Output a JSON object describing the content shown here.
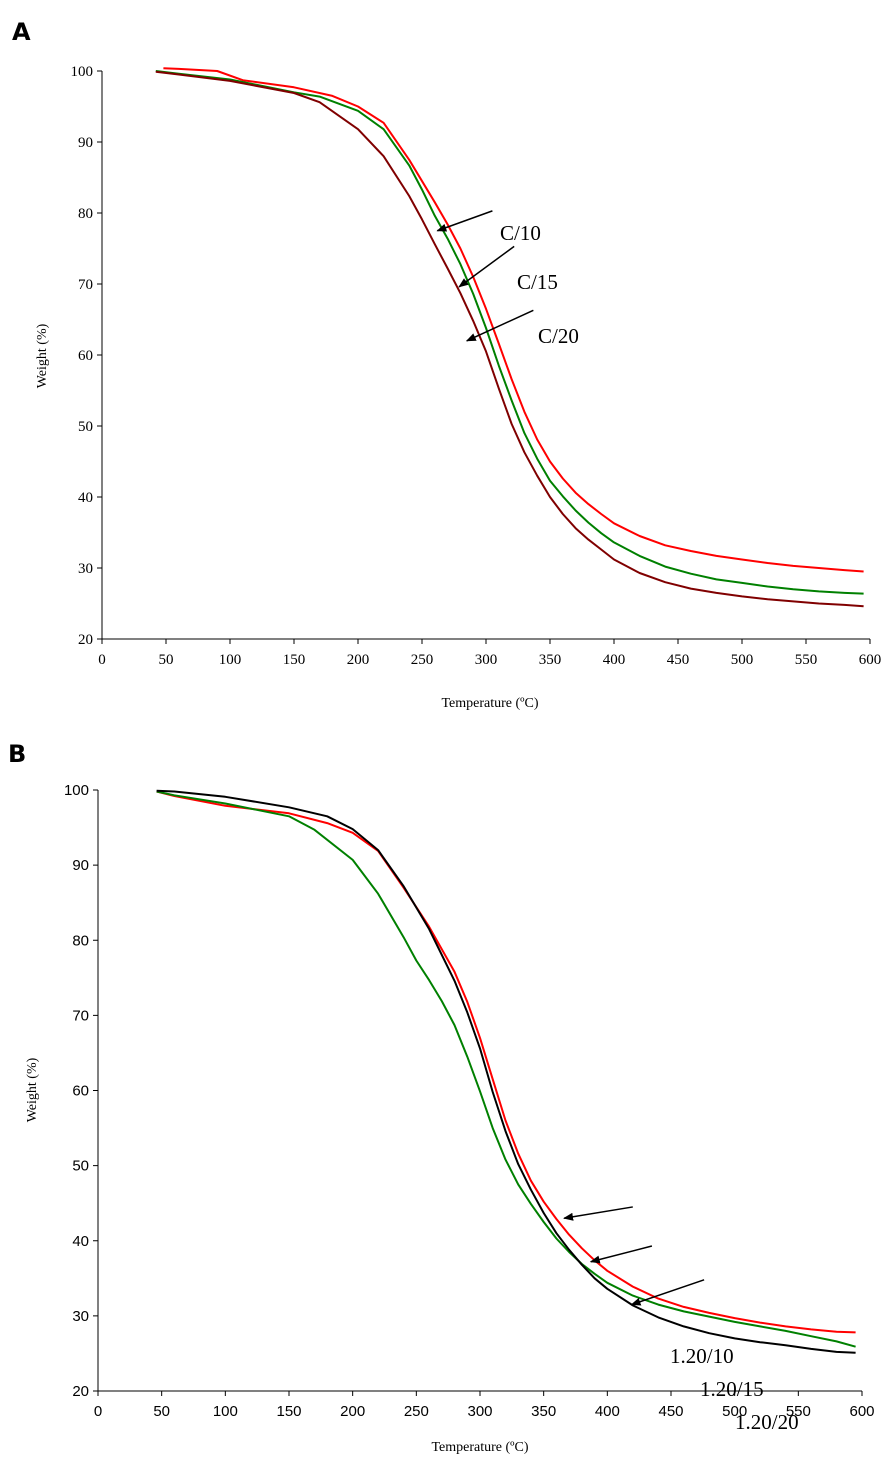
{
  "chart_data": [
    {
      "panel": "A",
      "type": "line",
      "xlabel": "Temperature (ºC)",
      "ylabel": "Weight (%)",
      "xlim": [
        0,
        600
      ],
      "ylim": [
        20,
        100
      ],
      "xticks": [
        0,
        50,
        100,
        150,
        200,
        250,
        300,
        350,
        400,
        450,
        500,
        550,
        600
      ],
      "yticks": [
        20,
        30,
        40,
        50,
        60,
        70,
        80,
        90,
        100
      ],
      "grid": false,
      "series": [
        {
          "name": "C/10",
          "color": "#ff0000",
          "x": [
            48,
            60,
            90,
            110,
            150,
            180,
            200,
            220,
            240,
            260,
            270,
            280,
            290,
            300,
            310,
            320,
            330,
            340,
            350,
            360,
            370,
            380,
            390,
            400,
            420,
            440,
            460,
            480,
            500,
            520,
            540,
            560,
            580,
            595
          ],
          "y": [
            100.4,
            100.3,
            100.0,
            98.7,
            97.7,
            96.5,
            95.0,
            92.7,
            87.5,
            81.5,
            78.4,
            75.0,
            71.0,
            66.5,
            61.6,
            56.6,
            52.0,
            48.1,
            45.0,
            42.6,
            40.6,
            39.0,
            37.6,
            36.3,
            34.5,
            33.2,
            32.4,
            31.7,
            31.2,
            30.7,
            30.3,
            30.0,
            29.7,
            29.5
          ]
        },
        {
          "name": "C/15",
          "color": "#008000",
          "x": [
            42,
            60,
            100,
            150,
            170,
            200,
            220,
            240,
            250,
            260,
            270,
            280,
            290,
            300,
            310,
            320,
            330,
            340,
            350,
            360,
            370,
            380,
            390,
            400,
            420,
            440,
            460,
            480,
            500,
            520,
            540,
            560,
            580,
            595
          ],
          "y": [
            100.0,
            99.6,
            98.8,
            97.0,
            96.4,
            94.4,
            91.8,
            86.7,
            83.3,
            79.6,
            76.4,
            72.8,
            68.6,
            63.8,
            58.5,
            53.6,
            49.0,
            45.4,
            42.3,
            40.1,
            38.1,
            36.4,
            34.9,
            33.6,
            31.7,
            30.2,
            29.2,
            28.4,
            27.9,
            27.4,
            27.0,
            26.7,
            26.5,
            26.4
          ]
        },
        {
          "name": "C/20",
          "color": "#800000",
          "x": [
            42,
            60,
            100,
            150,
            170,
            200,
            220,
            240,
            250,
            260,
            270,
            280,
            290,
            300,
            310,
            320,
            330,
            340,
            350,
            360,
            370,
            380,
            390,
            400,
            420,
            440,
            460,
            480,
            500,
            520,
            540,
            560,
            580,
            595
          ],
          "y": [
            99.9,
            99.5,
            98.6,
            96.9,
            95.6,
            91.8,
            88.0,
            82.4,
            79.1,
            75.6,
            72.2,
            68.7,
            64.8,
            60.5,
            55.3,
            50.3,
            46.3,
            43.0,
            40.0,
            37.6,
            35.6,
            34.0,
            32.6,
            31.2,
            29.3,
            28.0,
            27.1,
            26.5,
            26.0,
            25.6,
            25.3,
            25.0,
            24.8,
            24.6
          ]
        }
      ],
      "annotations": [
        {
          "text": "C/10",
          "arrow_from": [
            305,
            80.3
          ],
          "arrow_to": [
            262,
            77.5
          ]
        },
        {
          "text": "C/15",
          "arrow_from": [
            322,
            75.3
          ],
          "arrow_to": [
            279,
            69.6
          ]
        },
        {
          "text": "C/20",
          "arrow_from": [
            337,
            66.3
          ],
          "arrow_to": [
            285,
            62.0
          ]
        }
      ]
    },
    {
      "panel": "B",
      "type": "line",
      "xlabel": "Temperature (ºC)",
      "ylabel": "Weight (%)",
      "xlim": [
        0,
        600
      ],
      "ylim": [
        20,
        100
      ],
      "xticks": [
        0,
        50,
        100,
        150,
        200,
        250,
        300,
        350,
        400,
        450,
        500,
        550,
        600
      ],
      "yticks": [
        20,
        30,
        40,
        50,
        60,
        70,
        80,
        90,
        100
      ],
      "grid": false,
      "series": [
        {
          "name": "1.20/10",
          "color": "#ff0000",
          "x": [
            46,
            60,
            100,
            150,
            180,
            200,
            220,
            240,
            260,
            280,
            290,
            300,
            310,
            320,
            330,
            340,
            350,
            360,
            370,
            380,
            390,
            400,
            420,
            440,
            460,
            480,
            500,
            520,
            540,
            560,
            580,
            595
          ],
          "y": [
            99.8,
            99.2,
            97.9,
            96.9,
            95.6,
            94.3,
            91.9,
            87.0,
            81.8,
            75.8,
            71.8,
            67.0,
            61.5,
            56.0,
            51.6,
            48.0,
            45.2,
            42.9,
            40.8,
            39.0,
            37.4,
            36.0,
            33.9,
            32.3,
            31.2,
            30.4,
            29.7,
            29.1,
            28.6,
            28.2,
            27.9,
            27.8
          ]
        },
        {
          "name": "1.20/15",
          "color": "#008000",
          "x": [
            46,
            60,
            100,
            150,
            170,
            200,
            220,
            240,
            250,
            260,
            270,
            280,
            290,
            300,
            310,
            320,
            330,
            340,
            350,
            360,
            370,
            380,
            390,
            400,
            420,
            440,
            460,
            480,
            500,
            520,
            540,
            560,
            580,
            595
          ],
          "y": [
            99.8,
            99.3,
            98.2,
            96.5,
            94.7,
            90.7,
            86.2,
            80.4,
            77.3,
            74.7,
            71.9,
            68.7,
            64.5,
            59.9,
            55.0,
            50.8,
            47.5,
            44.9,
            42.5,
            40.3,
            38.5,
            36.9,
            35.6,
            34.4,
            32.7,
            31.5,
            30.6,
            29.9,
            29.2,
            28.6,
            28.0,
            27.3,
            26.6,
            25.9
          ]
        },
        {
          "name": "1.20/20",
          "color": "#000000",
          "x": [
            46,
            60,
            100,
            150,
            180,
            200,
            220,
            240,
            260,
            280,
            290,
            300,
            310,
            320,
            330,
            340,
            350,
            360,
            370,
            380,
            390,
            400,
            420,
            440,
            460,
            480,
            500,
            520,
            540,
            560,
            580,
            595
          ],
          "y": [
            99.9,
            99.8,
            99.1,
            97.7,
            96.5,
            94.8,
            92.0,
            87.2,
            81.5,
            74.6,
            70.4,
            65.6,
            59.8,
            54.6,
            50.2,
            46.8,
            43.7,
            41.0,
            38.8,
            36.8,
            35.0,
            33.6,
            31.4,
            29.8,
            28.6,
            27.7,
            27.0,
            26.5,
            26.1,
            25.6,
            25.2,
            25.1
          ]
        }
      ],
      "annotations": [
        {
          "text": "1.20/10",
          "arrow_from": [
            420,
            44.5
          ],
          "arrow_to": [
            366,
            43.0
          ]
        },
        {
          "text": "1.20/15",
          "arrow_from": [
            435,
            39.3
          ],
          "arrow_to": [
            387,
            37.2
          ]
        },
        {
          "text": "1.20/20",
          "arrow_from": [
            476,
            34.8
          ],
          "arrow_to": [
            419,
            31.5
          ]
        }
      ]
    }
  ],
  "panels": [
    {
      "letter": "A"
    },
    {
      "letter": "B"
    }
  ]
}
